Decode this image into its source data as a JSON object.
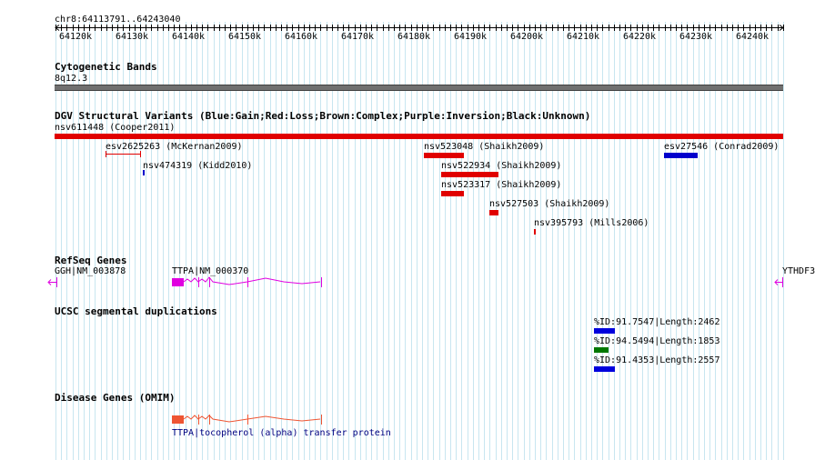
{
  "ruler": {
    "position": "chr8:64113791..64243040",
    "ticks": [
      "64120k",
      "64130k",
      "64140k",
      "64150k",
      "64160k",
      "64170k",
      "64180k",
      "64190k",
      "64200k",
      "64210k",
      "64220k",
      "64230k",
      "64240k"
    ]
  },
  "tracks": {
    "cytoband": {
      "title": "Cytogenetic Bands",
      "band": "8q12.3"
    },
    "dgv": {
      "title": "DGV Structural Variants (Blue:Gain;Red:Loss;Brown:Complex;Purple:Inversion;Black:Unknown)",
      "wide_label": "nsv611448 (Cooper2011)",
      "variants": [
        {
          "label": "esv2625263 (McKernan2009)",
          "color": "#e00000",
          "type": "line"
        },
        {
          "label": "nsv474319 (Kidd2010)",
          "color": "#0000cc",
          "type": "tick"
        },
        {
          "label": "nsv523048 (Shaikh2009)",
          "color": "#e00000",
          "type": "bar"
        },
        {
          "label": "nsv522934 (Shaikh2009)",
          "color": "#e00000",
          "type": "bar"
        },
        {
          "label": "nsv523317 (Shaikh2009)",
          "color": "#e00000",
          "type": "bar"
        },
        {
          "label": "nsv527503 (Shaikh2009)",
          "color": "#e00000",
          "type": "bar"
        },
        {
          "label": "nsv395793 (Mills2006)",
          "color": "#e00000",
          "type": "tick"
        },
        {
          "label": "esv27546 (Conrad2009)",
          "color": "#0000cc",
          "type": "bar"
        }
      ]
    },
    "refseq": {
      "title": "RefSeq Genes",
      "genes": [
        {
          "label": "GGH|NM_003878"
        },
        {
          "label": "TTPA|NM_000370"
        },
        {
          "label": "YTHDF3"
        }
      ],
      "color": "#e000e0"
    },
    "segdup": {
      "title": "UCSC segmental duplications",
      "items": [
        {
          "label": "%ID:91.7547|Length:2462",
          "color": "#0000dd"
        },
        {
          "label": "%ID:94.5494|Length:1853",
          "color": "#007700"
        },
        {
          "label": "%ID:91.4353|Length:2557",
          "color": "#0000dd"
        }
      ]
    },
    "omim": {
      "title": "Disease Genes (OMIM)",
      "label": "TTPA|tocopherol (alpha) transfer protein",
      "color": "#ee5533"
    }
  }
}
